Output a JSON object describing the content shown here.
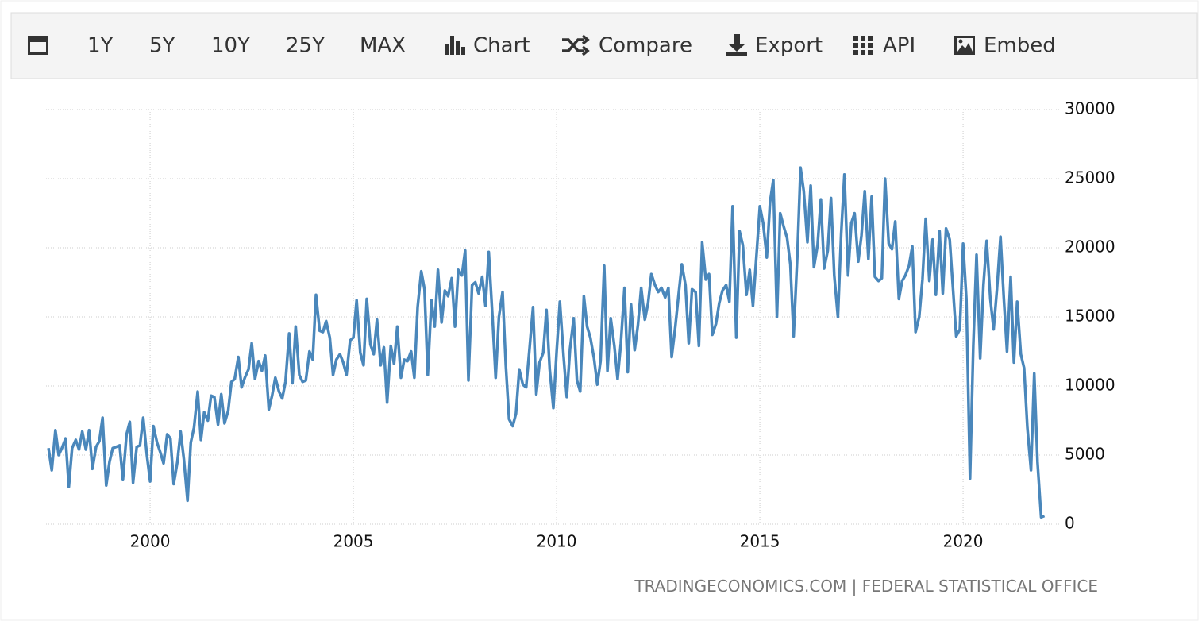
{
  "toolbar": [
    "1Y",
    "5Y",
    "10Y",
    "25Y",
    "MAX",
    "Chart",
    "Compare",
    "Export",
    "API",
    "Embed"
  ],
  "source": "TRADINGECONOMICS.COM | FEDERAL STATISTICAL OFFICE",
  "chart_data": {
    "type": "line",
    "color": "#4a87bb",
    "grid": true,
    "xlim": [
      1997.44,
      2022.44
    ],
    "xticks": [
      2000,
      2005,
      2010,
      2015,
      2020
    ],
    "ylim": [
      0,
      30000
    ],
    "yticks": [
      0,
      5000,
      10000,
      15000,
      20000,
      25000,
      30000
    ],
    "x": [
      1997.5,
      1997.58,
      1997.67,
      1997.75,
      1997.83,
      1997.92,
      1998.0,
      1998.08,
      1998.17,
      1998.25,
      1998.33,
      1998.42,
      1998.5,
      1998.58,
      1998.67,
      1998.75,
      1998.83,
      1998.92,
      1999.0,
      1999.08,
      1999.17,
      1999.25,
      1999.33,
      1999.42,
      1999.5,
      1999.58,
      1999.67,
      1999.75,
      1999.83,
      1999.92,
      2000.0,
      2000.08,
      2000.17,
      2000.25,
      2000.33,
      2000.42,
      2000.5,
      2000.58,
      2000.67,
      2000.75,
      2000.83,
      2000.92,
      2001.0,
      2001.08,
      2001.17,
      2001.25,
      2001.33,
      2001.42,
      2001.5,
      2001.58,
      2001.67,
      2001.75,
      2001.83,
      2001.92,
      2002.0,
      2002.08,
      2002.17,
      2002.25,
      2002.33,
      2002.42,
      2002.5,
      2002.58,
      2002.67,
      2002.75,
      2002.83,
      2002.92,
      2003.0,
      2003.08,
      2003.17,
      2003.25,
      2003.33,
      2003.42,
      2003.5,
      2003.58,
      2003.67,
      2003.75,
      2003.83,
      2003.92,
      2004.0,
      2004.08,
      2004.17,
      2004.25,
      2004.33,
      2004.42,
      2004.5,
      2004.58,
      2004.67,
      2004.75,
      2004.83,
      2004.92,
      2005.0,
      2005.08,
      2005.17,
      2005.25,
      2005.33,
      2005.42,
      2005.5,
      2005.58,
      2005.67,
      2005.75,
      2005.83,
      2005.92,
      2006.0,
      2006.08,
      2006.17,
      2006.25,
      2006.33,
      2006.42,
      2006.5,
      2006.58,
      2006.67,
      2006.75,
      2006.83,
      2006.92,
      2007.0,
      2007.08,
      2007.17,
      2007.25,
      2007.33,
      2007.42,
      2007.5,
      2007.58,
      2007.67,
      2007.75,
      2007.83,
      2007.92,
      2008.0,
      2008.08,
      2008.17,
      2008.25,
      2008.33,
      2008.42,
      2008.5,
      2008.58,
      2008.67,
      2008.75,
      2008.83,
      2008.92,
      2009.0,
      2009.08,
      2009.17,
      2009.25,
      2009.33,
      2009.42,
      2009.5,
      2009.58,
      2009.67,
      2009.75,
      2009.83,
      2009.92,
      2010.0,
      2010.08,
      2010.17,
      2010.25,
      2010.33,
      2010.42,
      2010.5,
      2010.58,
      2010.67,
      2010.75,
      2010.83,
      2010.92,
      2011.0,
      2011.08,
      2011.17,
      2011.25,
      2011.33,
      2011.42,
      2011.5,
      2011.58,
      2011.67,
      2011.75,
      2011.83,
      2011.92,
      2012.0,
      2012.08,
      2012.17,
      2012.25,
      2012.33,
      2012.42,
      2012.5,
      2012.58,
      2012.67,
      2012.75,
      2012.83,
      2012.92,
      2013.0,
      2013.08,
      2013.17,
      2013.25,
      2013.33,
      2013.42,
      2013.5,
      2013.58,
      2013.67,
      2013.75,
      2013.83,
      2013.92,
      2014.0,
      2014.08,
      2014.17,
      2014.25,
      2014.33,
      2014.42,
      2014.5,
      2014.58,
      2014.67,
      2014.75,
      2014.83,
      2014.92,
      2015.0,
      2015.08,
      2015.17,
      2015.25,
      2015.33,
      2015.42,
      2015.5,
      2015.58,
      2015.67,
      2015.75,
      2015.83,
      2015.92,
      2016.0,
      2016.08,
      2016.17,
      2016.25,
      2016.33,
      2016.42,
      2016.5,
      2016.58,
      2016.67,
      2016.75,
      2016.83,
      2016.92,
      2017.0,
      2017.08,
      2017.17,
      2017.25,
      2017.33,
      2017.42,
      2017.5,
      2017.58,
      2017.67,
      2017.75,
      2017.83,
      2017.92,
      2018.0,
      2018.08,
      2018.17,
      2018.25,
      2018.33,
      2018.42,
      2018.5,
      2018.58,
      2018.67,
      2018.75,
      2018.83,
      2018.92,
      2019.0,
      2019.08,
      2019.17,
      2019.25,
      2019.33,
      2019.42,
      2019.5,
      2019.58,
      2019.67,
      2019.75,
      2019.83,
      2019.92,
      2020.0,
      2020.08,
      2020.17,
      2020.25,
      2020.33,
      2020.42,
      2020.5,
      2020.58,
      2020.67,
      2020.75,
      2020.83,
      2020.92,
      2021.0,
      2021.08,
      2021.17,
      2021.25,
      2021.33,
      2021.42,
      2021.5,
      2021.58,
      2021.67,
      2021.75,
      2021.83,
      2021.92,
      2022.0
    ],
    "values": [
      5500,
      3900,
      6800,
      5000,
      5500,
      6200,
      2700,
      5500,
      6100,
      5400,
      6700,
      5400,
      6800,
      4000,
      5600,
      6000,
      7700,
      2800,
      4500,
      5500,
      5600,
      5700,
      3200,
      6500,
      7400,
      3000,
      5600,
      5700,
      7700,
      5000,
      3100,
      7100,
      5900,
      5200,
      4400,
      6500,
      6200,
      2900,
      4500,
      6700,
      4700,
      1700,
      5900,
      7000,
      9600,
      6100,
      8100,
      7500,
      9300,
      9200,
      7200,
      9400,
      7300,
      8200,
      10300,
      10500,
      12100,
      9900,
      10600,
      11200,
      13100,
      10500,
      11800,
      11100,
      12200,
      8300,
      9300,
      10600,
      9600,
      9100,
      10300,
      13800,
      10200,
      14300,
      10800,
      10300,
      10400,
      12500,
      11900,
      16600,
      14000,
      13900,
      14700,
      13500,
      10800,
      11900,
      12300,
      11700,
      10800,
      13300,
      13500,
      16200,
      12400,
      11500,
      16300,
      13000,
      12300,
      14800,
      11500,
      12800,
      8800,
      12900,
      11600,
      14300,
      10600,
      11900,
      11800,
      12500,
      10600,
      15700,
      18300,
      17000,
      10800,
      16200,
      14300,
      18400,
      14600,
      16900,
      16500,
      17800,
      14300,
      18400,
      18000,
      19800,
      10400,
      17300,
      17500,
      16700,
      17900,
      15800,
      19700,
      15100,
      10600,
      15000,
      16800,
      11500,
      7600,
      7100,
      8000,
      11200,
      10100,
      9900,
      12600,
      15700,
      9400,
      11700,
      12400,
      15500,
      11200,
      8400,
      12500,
      16100,
      12200,
      9200,
      12700,
      14900,
      10400,
      9600,
      16500,
      14300,
      13500,
      12000,
      10100,
      11800,
      18700,
      11100,
      14900,
      12900,
      10500,
      13100,
      17100,
      11000,
      15900,
      12600,
      14400,
      17100,
      14800,
      16000,
      18100,
      17300,
      16800,
      17100,
      16400,
      17100,
      12100,
      14300,
      16600,
      18800,
      17300,
      13100,
      17000,
      16800,
      12900,
      20400,
      17700,
      18100,
      13700,
      14500,
      16000,
      16900,
      17300,
      16100,
      23000,
      13500,
      21200,
      20200,
      16600,
      18400,
      15800,
      19600,
      23000,
      21800,
      19300,
      23300,
      24900,
      15000,
      22500,
      21600,
      20700,
      18800,
      13600,
      19300,
      25800,
      24100,
      20400,
      24500,
      18600,
      20200,
      23500,
      18500,
      19800,
      23600,
      18000,
      15000,
      21000,
      25300,
      18000,
      21800,
      22500,
      19000,
      20900,
      24100,
      19200,
      23700,
      17900,
      17600,
      17800,
      25000,
      20300,
      19900,
      21900,
      16300,
      17600,
      18000,
      18700,
      20100,
      13900,
      15000,
      17700,
      22100,
      17600,
      20600,
      16600,
      21200,
      16700,
      21400,
      20600,
      17100,
      13600,
      14100,
      20300,
      16300,
      3300,
      12900,
      19500,
      12000,
      17300,
      20500,
      16300,
      14100,
      16900,
      20800,
      16400,
      12500,
      17900,
      11700,
      16100,
      12300,
      11300,
      7000,
      3900,
      10900,
      4500,
      500,
      600
    ]
  }
}
